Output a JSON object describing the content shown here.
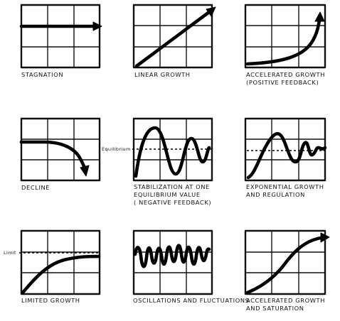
{
  "panels": [
    {
      "id": "stagnation",
      "caption": "Stagnation"
    },
    {
      "id": "linear",
      "caption": "Linear growth"
    },
    {
      "id": "accelerated",
      "caption": "Accelerated growth\n(Positive feedback)"
    },
    {
      "id": "decline",
      "caption": "Decline"
    },
    {
      "id": "stabilization",
      "caption": "Stabilization at one\nequilibrium value\n( Negative feedback)",
      "reference_label": "Equilibrium"
    },
    {
      "id": "exponential",
      "caption": "Exponential growth\nand regulation"
    },
    {
      "id": "limited",
      "caption": "Limited growth",
      "reference_label": "Limit"
    },
    {
      "id": "oscillations",
      "caption": "Oscillations and fluctuations"
    },
    {
      "id": "saturation",
      "caption": "Accelerated growth\nand saturation"
    }
  ]
}
